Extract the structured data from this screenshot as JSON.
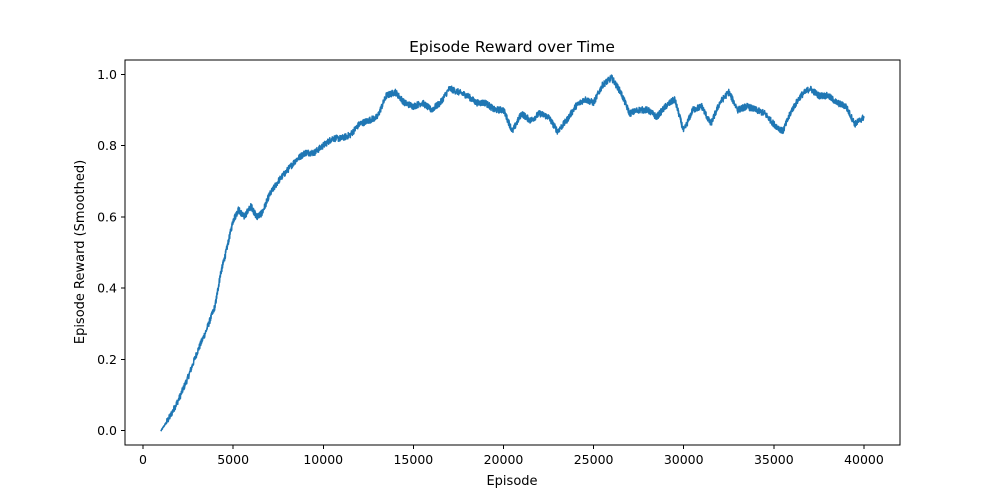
{
  "chart_data": {
    "type": "line",
    "title": "Episode Reward over Time",
    "xlabel": "Episode",
    "ylabel": "Episode Reward (Smoothed)",
    "xlim": [
      -1000,
      42000
    ],
    "ylim": [
      -0.04,
      1.04
    ],
    "xticks": [
      0,
      5000,
      10000,
      15000,
      20000,
      25000,
      30000,
      35000,
      40000
    ],
    "xtick_labels": [
      "0",
      "5000",
      "10000",
      "15000",
      "20000",
      "25000",
      "30000",
      "35000",
      "40000"
    ],
    "yticks": [
      0.0,
      0.2,
      0.4,
      0.6,
      0.8,
      1.0
    ],
    "ytick_labels": [
      "0.0",
      "0.2",
      "0.4",
      "0.6",
      "0.8",
      "1.0"
    ],
    "grid": false,
    "line_color": "#1f77b4",
    "series": [
      {
        "x": [
          1000,
          1500,
          2000,
          2500,
          3000,
          3500,
          4000,
          4300,
          4600,
          5000,
          5300,
          5600,
          6000,
          6300,
          6600,
          7000,
          7500,
          8000,
          8500,
          9000,
          9500,
          10000,
          10500,
          11000,
          11500,
          12000,
          12500,
          13000,
          13500,
          14000,
          14500,
          15000,
          15500,
          16000,
          16500,
          17000,
          17500,
          18000,
          18500,
          19000,
          19500,
          20000,
          20500,
          21000,
          21500,
          22000,
          22500,
          23000,
          23500,
          24000,
          24500,
          25000,
          25500,
          26000,
          26500,
          27000,
          27500,
          28000,
          28500,
          29000,
          29500,
          30000,
          30500,
          31000,
          31500,
          32000,
          32500,
          33000,
          33500,
          34000,
          34500,
          35000,
          35500,
          36000,
          36500,
          37000,
          37500,
          38000,
          38500,
          39000,
          39500,
          40000
        ],
        "y": [
          0.0,
          0.04,
          0.09,
          0.15,
          0.22,
          0.28,
          0.35,
          0.44,
          0.5,
          0.59,
          0.62,
          0.6,
          0.63,
          0.6,
          0.61,
          0.66,
          0.7,
          0.73,
          0.76,
          0.78,
          0.78,
          0.8,
          0.82,
          0.82,
          0.83,
          0.86,
          0.87,
          0.88,
          0.94,
          0.95,
          0.92,
          0.91,
          0.92,
          0.9,
          0.92,
          0.96,
          0.95,
          0.94,
          0.92,
          0.92,
          0.9,
          0.9,
          0.84,
          0.89,
          0.87,
          0.89,
          0.88,
          0.84,
          0.87,
          0.91,
          0.93,
          0.92,
          0.97,
          0.99,
          0.95,
          0.89,
          0.9,
          0.9,
          0.88,
          0.91,
          0.93,
          0.84,
          0.9,
          0.91,
          0.86,
          0.92,
          0.95,
          0.9,
          0.91,
          0.9,
          0.89,
          0.86,
          0.84,
          0.9,
          0.94,
          0.96,
          0.94,
          0.94,
          0.92,
          0.91,
          0.86,
          0.88
        ]
      }
    ]
  }
}
